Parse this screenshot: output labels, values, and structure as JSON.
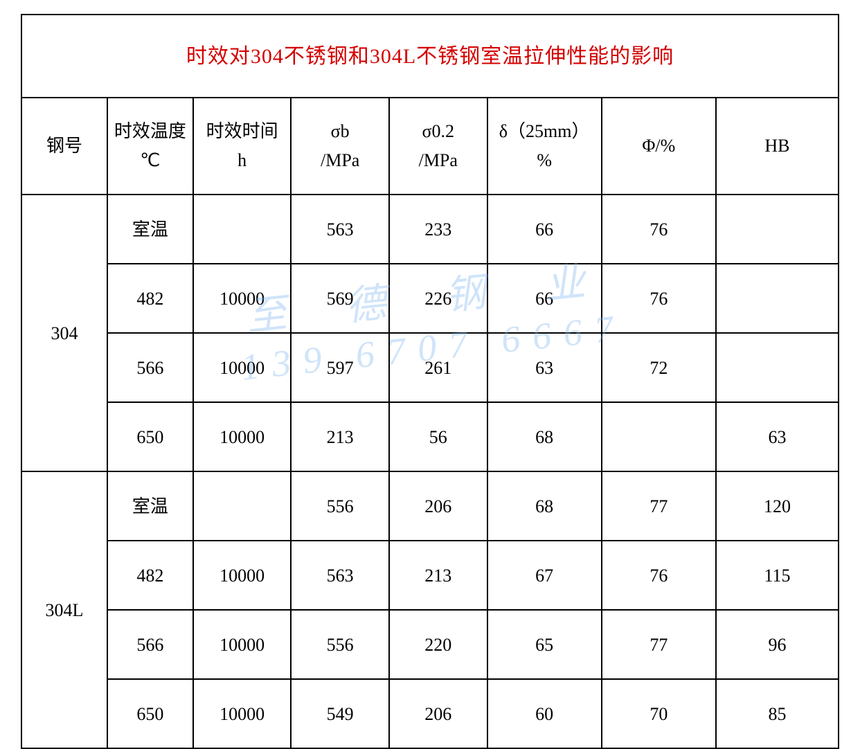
{
  "table": {
    "title": "时效对304不锈钢和304L不锈钢室温拉伸性能的影响",
    "title_color": "#d40000",
    "border_color": "#000000",
    "background_color": "#ffffff",
    "text_color": "#000000",
    "font_family": "SimSun",
    "title_fontsize": 30,
    "header_fontsize": 26,
    "cell_fontsize": 26,
    "columns": [
      {
        "key": "steel",
        "label_line1": "钢号",
        "label_line2": ""
      },
      {
        "key": "temp",
        "label_line1": "时效温度",
        "label_line2": "℃"
      },
      {
        "key": "time",
        "label_line1": "时效时间",
        "label_line2": "h"
      },
      {
        "key": "sb",
        "label_line1": "σb",
        "label_line2": "/MPa"
      },
      {
        "key": "s02",
        "label_line1": "σ0.2",
        "label_line2": "/MPa"
      },
      {
        "key": "delta",
        "label_line1": "δ（25mm）",
        "label_line2": "%"
      },
      {
        "key": "phi",
        "label_line1": "Φ/%",
        "label_line2": ""
      },
      {
        "key": "hb",
        "label_line1": "HB",
        "label_line2": ""
      }
    ],
    "groups": [
      {
        "steel": "304",
        "rows": [
          {
            "temp": "室温",
            "time": "",
            "sb": "563",
            "s02": "233",
            "delta": "66",
            "phi": "76",
            "hb": ""
          },
          {
            "temp": "482",
            "time": "10000",
            "sb": "569",
            "s02": "226",
            "delta": "66",
            "phi": "76",
            "hb": ""
          },
          {
            "temp": "566",
            "time": "10000",
            "sb": "597",
            "s02": "261",
            "delta": "63",
            "phi": "72",
            "hb": ""
          },
          {
            "temp": "650",
            "time": "10000",
            "sb": "213",
            "s02": "56",
            "delta": "68",
            "phi": "",
            "hb": "63"
          }
        ]
      },
      {
        "steel": "304L",
        "rows": [
          {
            "temp": "室温",
            "time": "",
            "sb": "556",
            "s02": "206",
            "delta": "68",
            "phi": "77",
            "hb": "120"
          },
          {
            "temp": "482",
            "time": "10000",
            "sb": "563",
            "s02": "213",
            "delta": "67",
            "phi": "76",
            "hb": "115"
          },
          {
            "temp": "566",
            "time": "10000",
            "sb": "556",
            "s02": "220",
            "delta": "65",
            "phi": "77",
            "hb": "96"
          },
          {
            "temp": "650",
            "time": "10000",
            "sb": "549",
            "s02": "206",
            "delta": "60",
            "phi": "70",
            "hb": "85"
          }
        ]
      }
    ]
  },
  "watermark": {
    "line1": "至 德 钢 业",
    "line2": "139 6707 6667",
    "color": "#7bb3ef",
    "opacity": 0.35,
    "rotation_deg": -6
  }
}
